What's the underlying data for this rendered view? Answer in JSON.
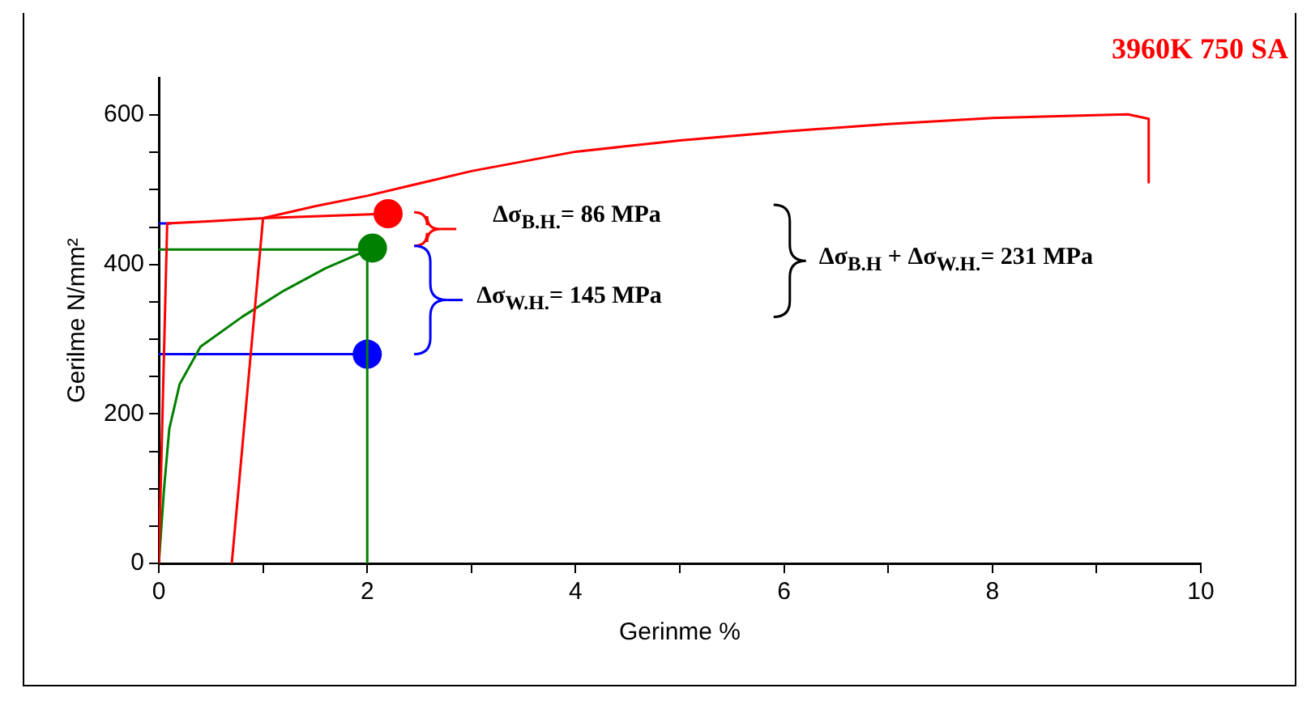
{
  "chart_data": {
    "type": "line",
    "title": "3960K 750 SA",
    "xlabel": "Gerinme %",
    "ylabel": "Gerilme N/mm²",
    "xlim": [
      0,
      10
    ],
    "xticks": [
      0,
      {
        "value": 1,
        "label": null
      },
      2,
      {
        "value": 3,
        "label": null
      },
      4,
      {
        "value": 5,
        "label": null
      },
      6,
      {
        "value": 7,
        "label": null
      },
      8,
      {
        "value": 9,
        "label": null
      },
      10
    ],
    "ylim": [
      0,
      650
    ],
    "yticks": [
      0,
      {
        "value": 50,
        "label": null
      },
      {
        "value": 100,
        "label": null
      },
      {
        "value": 150,
        "label": null
      },
      200,
      {
        "value": 250,
        "label": null
      },
      {
        "value": 300,
        "label": null
      },
      {
        "value": 350,
        "label": null
      },
      400,
      {
        "value": 450,
        "label": null
      },
      {
        "value": 500,
        "label": null
      },
      {
        "value": 550,
        "label": null
      },
      600
    ],
    "grid": false,
    "legend": false,
    "marker": "none",
    "line_style": "solid",
    "annotations": [
      "Δσ$_{B.H.}$= 86 MPa",
      "Δσ$_{W.H.}$= 145 MPa",
      "Δσ$_{B.H}$ + Δσ$_{W.H.}$= 231 MPa"
    ],
    "series": [
      {
        "type": "line",
        "color": "#ff0000",
        "x": [
          0,
          0.08,
          0.5,
          1.0,
          1.5,
          2,
          3,
          4,
          5,
          6,
          7,
          8,
          9,
          9.3,
          9.5,
          9.5
        ],
        "values": [
          0,
          455,
          458,
          462,
          478,
          492,
          525,
          551,
          566,
          578,
          588,
          596,
          600,
          601,
          595,
          510
        ]
      },
      {
        "type": "line",
        "color": "#ff0000",
        "x": [
          0.7,
          1.0
        ],
        "values": [
          0,
          462
        ]
      },
      {
        "type": "line",
        "color": "#ff0000",
        "x": [
          1.0,
          2.2
        ],
        "values": [
          462,
          468
        ]
      },
      {
        "type": "line",
        "color": "#0000ff",
        "x": [
          0,
          0.12
        ],
        "values": [
          455,
          455
        ]
      },
      {
        "type": "line",
        "color": "#008000",
        "x": [
          0,
          0.05,
          0.1,
          0.2,
          0.4,
          0.8,
          1.2,
          1.6,
          2.05
        ],
        "values": [
          0,
          100,
          180,
          240,
          290,
          330,
          365,
          395,
          422
        ]
      },
      {
        "type": "line",
        "color": "#008000",
        "x": [
          0,
          2.05
        ],
        "values": [
          420,
          420
        ]
      },
      {
        "type": "line",
        "color": "#008000",
        "x": [
          2,
          2
        ],
        "values": [
          420,
          0
        ]
      },
      {
        "type": "line",
        "color": "#0000ff",
        "x": [
          0,
          2
        ],
        "values": [
          280,
          280
        ]
      },
      {
        "type": "scatter",
        "marker": "circle",
        "color": "#ff0000",
        "x": [
          2.2
        ],
        "values": [
          468
        ]
      },
      {
        "type": "scatter",
        "marker": "circle",
        "color": "#008000",
        "x": [
          2.05
        ],
        "values": [
          422
        ]
      },
      {
        "type": "scatter",
        "marker": "circle",
        "color": "#0000ff",
        "x": [
          2
        ],
        "values": [
          280
        ]
      }
    ]
  }
}
